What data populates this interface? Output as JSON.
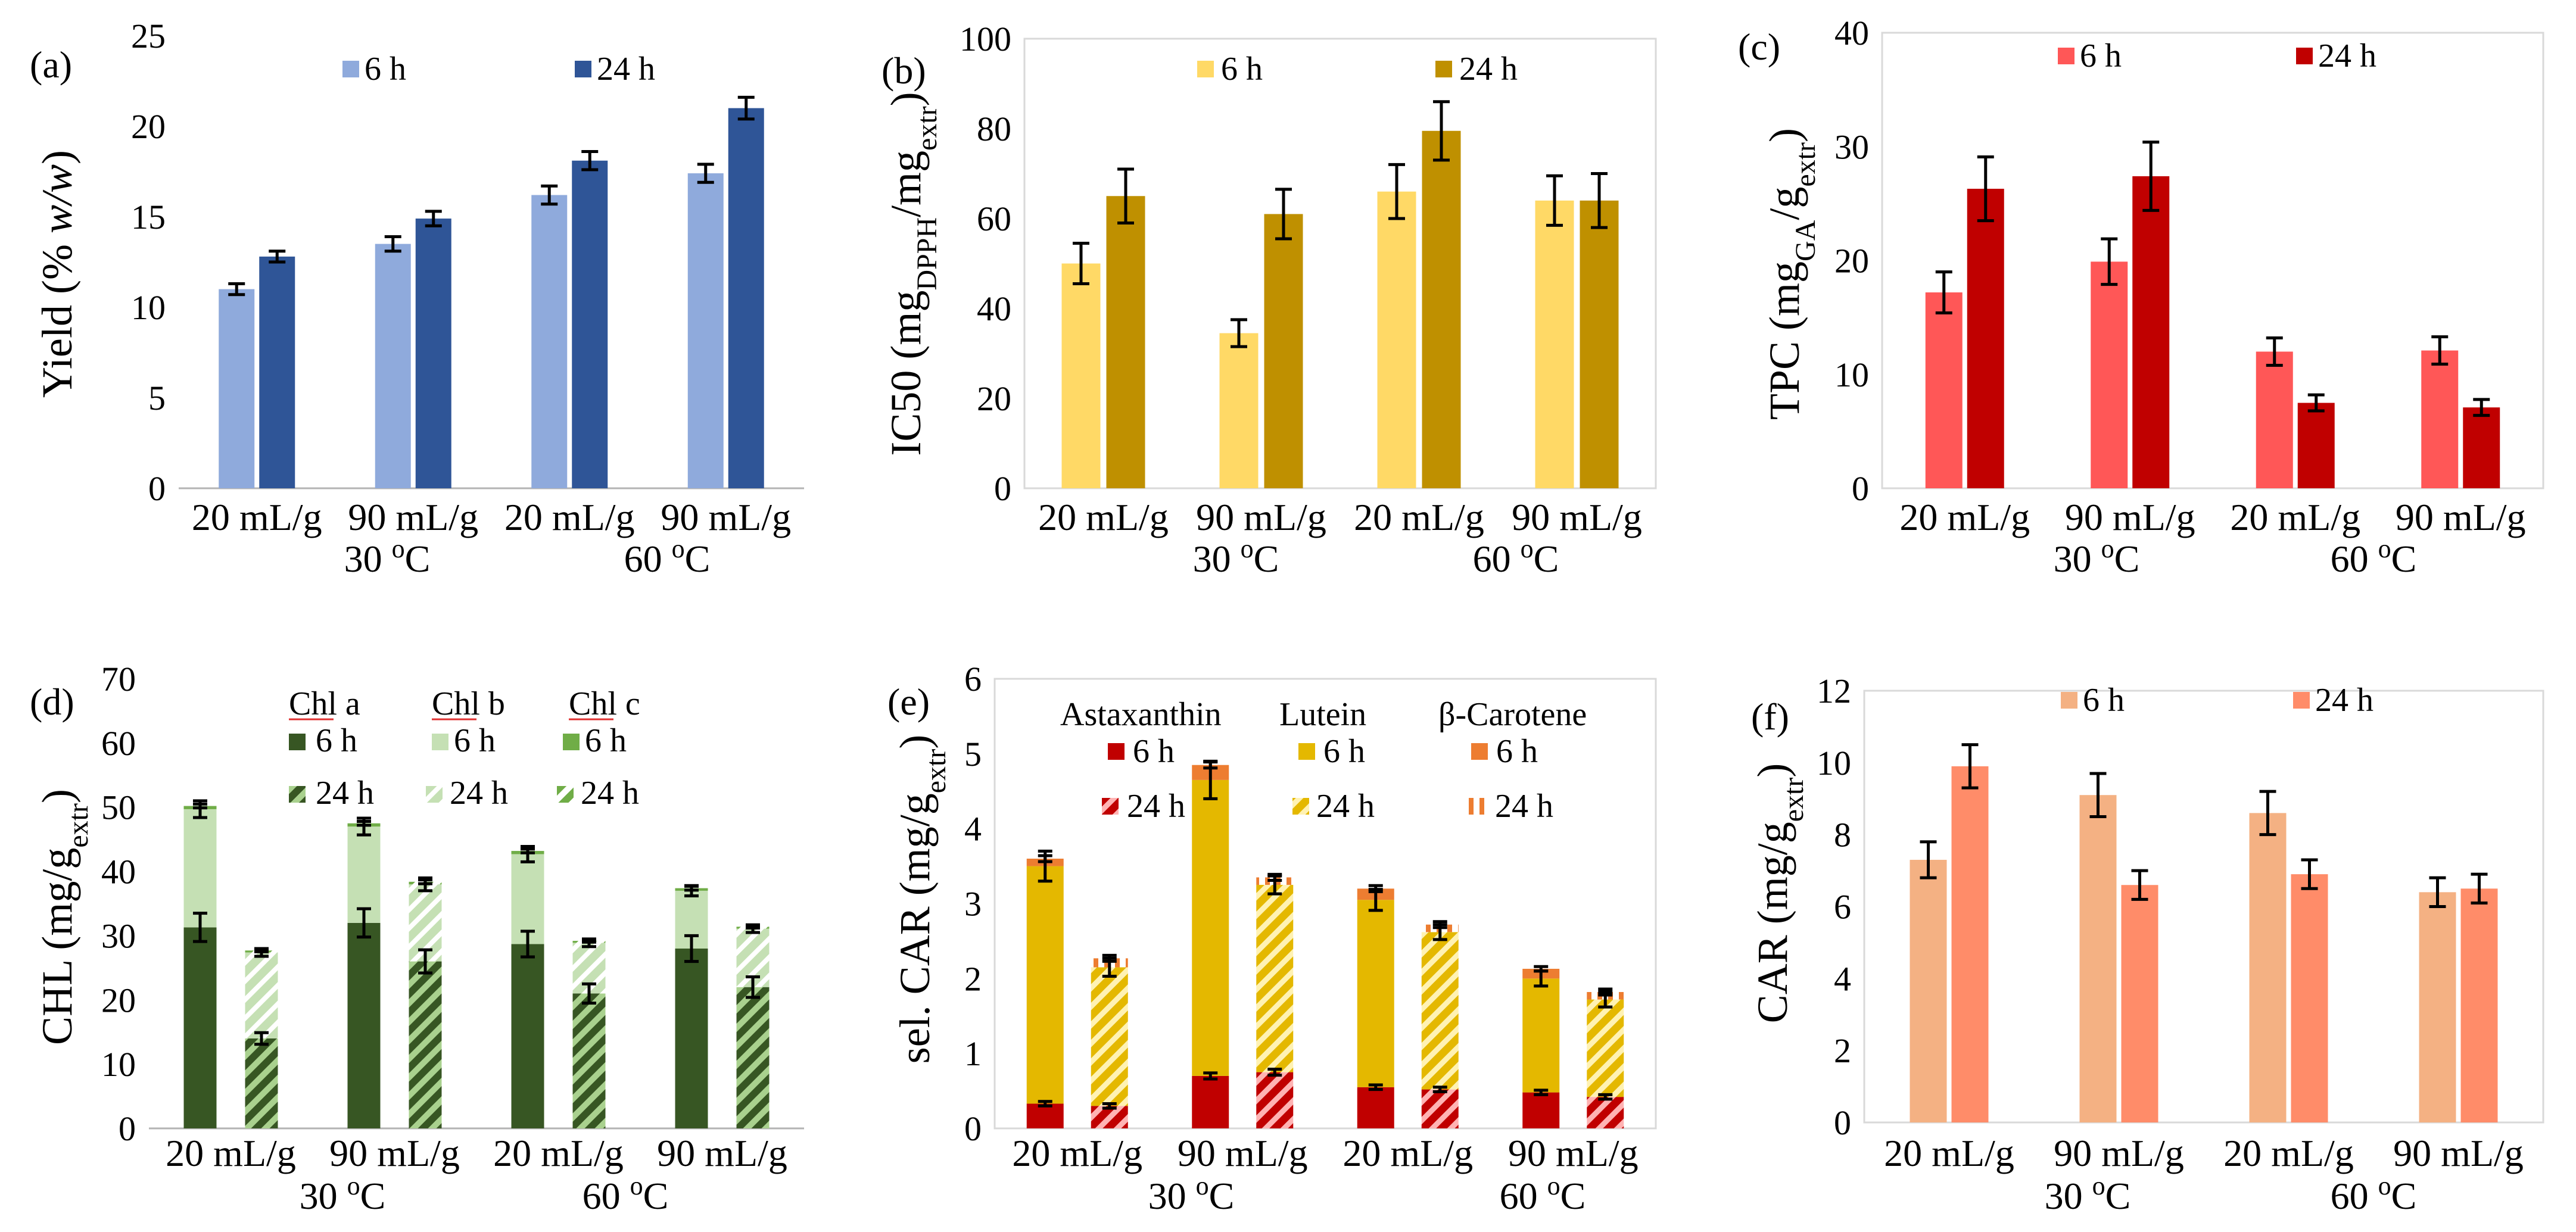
{
  "chart_data": [
    {
      "panel": "(a)",
      "type": "bar",
      "ylabel": "Yield (% w/w)",
      "ylim": [
        0,
        25
      ],
      "yticks": [
        0,
        5,
        10,
        15,
        20,
        25
      ],
      "categories": [
        "20 mL/g",
        "90 mL/g",
        "20 mL/g",
        "90 mL/g"
      ],
      "groups": [
        "30 oC",
        "60 oC"
      ],
      "series": [
        {
          "name": "6 h",
          "color": "#8faadc",
          "values": [
            11.0,
            13.5,
            16.2,
            17.4
          ],
          "errors": [
            0.3,
            0.4,
            0.5,
            0.5
          ]
        },
        {
          "name": "24 h",
          "color": "#2f5597",
          "values": [
            12.8,
            14.9,
            18.1,
            21.0
          ],
          "errors": [
            0.3,
            0.4,
            0.5,
            0.6
          ]
        }
      ]
    },
    {
      "panel": "(b)",
      "type": "bar",
      "ylabel": "IC50 (mgDPPH/mgextr)",
      "ylim": [
        0,
        100
      ],
      "yticks": [
        0,
        20,
        40,
        60,
        80,
        100
      ],
      "categories": [
        "20 mL/g",
        "90 mL/g",
        "20 mL/g",
        "90 mL/g"
      ],
      "groups": [
        "30 oC",
        "60 oC"
      ],
      "series": [
        {
          "name": "6 h",
          "color": "#ffd966",
          "values": [
            50,
            34.5,
            66,
            64
          ],
          "errors": [
            4.5,
            3,
            6,
            5.5
          ]
        },
        {
          "name": "24 h",
          "color": "#bf9000",
          "values": [
            65,
            61,
            79.5,
            64
          ],
          "errors": [
            6,
            5.5,
            6.5,
            6
          ]
        }
      ]
    },
    {
      "panel": "(c)",
      "type": "bar",
      "ylabel": "TPC (mgGA/gextr)",
      "ylim": [
        0,
        40
      ],
      "yticks": [
        0,
        10,
        20,
        30,
        40
      ],
      "categories": [
        "20 mL/g",
        "90 mL/g",
        "20 mL/g",
        "90 mL/g"
      ],
      "groups": [
        "30 oC",
        "60 oC"
      ],
      "series": [
        {
          "name": "6 h",
          "color": "#ff5757",
          "values": [
            17.2,
            19.9,
            12.0,
            12.1
          ],
          "errors": [
            1.8,
            2.0,
            1.2,
            1.2
          ]
        },
        {
          "name": "24 h",
          "color": "#c00000",
          "values": [
            26.3,
            27.4,
            7.5,
            7.1
          ],
          "errors": [
            2.8,
            3.0,
            0.7,
            0.7
          ]
        }
      ]
    },
    {
      "panel": "(d)",
      "type": "bar",
      "stacked": true,
      "ylabel": "CHL (mg/gextr)",
      "ylim": [
        0,
        70
      ],
      "yticks": [
        0,
        10,
        20,
        30,
        40,
        50,
        60,
        70
      ],
      "categories": [
        "20 mL/g",
        "90 mL/g",
        "20 mL/g",
        "90 mL/g"
      ],
      "groups": [
        "30 oC",
        "60 oC"
      ],
      "legend_headers": [
        "Chl a",
        "Chl b",
        "Chl c"
      ],
      "time_labels": [
        "6 h",
        "24 h"
      ],
      "bars_6h": [
        {
          "segments": [
            31.3,
            18.4,
            0.5
          ],
          "errors": [
            2.2,
            1.3,
            0.3
          ]
        },
        {
          "segments": [
            32.0,
            15.0,
            0.5
          ],
          "errors": [
            2.2,
            1.3,
            0.3
          ]
        },
        {
          "segments": [
            28.7,
            14.0,
            0.5
          ],
          "errors": [
            2.0,
            1.2,
            0.3
          ]
        },
        {
          "segments": [
            28.0,
            9.0,
            0.4
          ],
          "errors": [
            2.0,
            0.8,
            0.3
          ]
        }
      ],
      "bars_24h": [
        {
          "segments": [
            14.0,
            13.4,
            0.3
          ],
          "errors": [
            0.9,
            0.6,
            0.2
          ]
        },
        {
          "segments": [
            26.0,
            12.0,
            0.4
          ],
          "errors": [
            1.8,
            1.0,
            0.3
          ]
        },
        {
          "segments": [
            21.0,
            7.9,
            0.3
          ],
          "errors": [
            1.5,
            0.6,
            0.2
          ]
        },
        {
          "segments": [
            22.0,
            9.1,
            0.3
          ],
          "errors": [
            1.6,
            0.6,
            0.2
          ]
        }
      ]
    },
    {
      "panel": "(e)",
      "type": "bar",
      "stacked": true,
      "ylabel": "sel. CAR (mg/gextr)",
      "ylim": [
        0,
        6
      ],
      "yticks": [
        0,
        1,
        2,
        3,
        4,
        5,
        6
      ],
      "categories": [
        "20 mL/g",
        "90 mL/g",
        "20 mL/g",
        "90 mL/g"
      ],
      "groups": [
        "30 oC",
        "60 oC"
      ],
      "legend_headers": [
        "Astaxanthin",
        "Lutein",
        "β-Carotene"
      ],
      "time_labels": [
        "6 h",
        "24 h"
      ],
      "bars_6h": [
        {
          "segments": [
            0.33,
            3.17,
            0.1
          ],
          "errors": [
            0.03,
            0.2,
            0.04
          ]
        },
        {
          "segments": [
            0.7,
            3.95,
            0.2
          ],
          "errors": [
            0.04,
            0.25,
            0.04
          ]
        },
        {
          "segments": [
            0.55,
            2.5,
            0.15
          ],
          "errors": [
            0.03,
            0.14,
            0.04
          ]
        },
        {
          "segments": [
            0.48,
            1.52,
            0.13
          ],
          "errors": [
            0.03,
            0.1,
            0.03
          ]
        }
      ],
      "bars_24h": [
        {
          "segments": [
            0.3,
            1.85,
            0.12
          ],
          "errors": [
            0.03,
            0.12,
            0.04
          ]
        },
        {
          "segments": [
            0.75,
            2.5,
            0.1
          ],
          "errors": [
            0.04,
            0.12,
            0.04
          ]
        },
        {
          "segments": [
            0.52,
            2.1,
            0.1
          ],
          "errors": [
            0.03,
            0.1,
            0.04
          ]
        },
        {
          "segments": [
            0.42,
            1.3,
            0.1
          ],
          "errors": [
            0.03,
            0.1,
            0.04
          ]
        }
      ]
    },
    {
      "panel": "(f)",
      "type": "bar",
      "ylabel": "CAR (mg/gextr)",
      "ylim": [
        0,
        12
      ],
      "yticks": [
        0,
        2,
        4,
        6,
        8,
        10,
        12
      ],
      "categories": [
        "20 mL/g",
        "90 mL/g",
        "20 mL/g",
        "90 mL/g"
      ],
      "groups": [
        "30 oC",
        "60 oC"
      ],
      "series": [
        {
          "name": "6 h",
          "color": "#f4b183",
          "values": [
            7.3,
            9.1,
            8.6,
            6.4
          ],
          "errors": [
            0.5,
            0.6,
            0.6,
            0.4
          ]
        },
        {
          "name": "24 h",
          "color": "#ff8c69",
          "values": [
            9.9,
            6.6,
            6.9,
            6.5
          ],
          "errors": [
            0.6,
            0.4,
            0.4,
            0.4
          ]
        }
      ]
    }
  ],
  "palette": {
    "chl_a": "#375623",
    "chl_b": "#c5e0b4",
    "chl_c": "#70ad47",
    "astaxanthin": "#c00000",
    "lutein": "#e4b800",
    "b_carotene": "#ed7d31"
  }
}
